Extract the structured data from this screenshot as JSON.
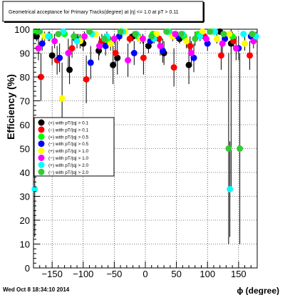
{
  "title_box": {
    "text": "Geometrical acceptance for Primary Tracks(degree) at |η| <= 1.0 at pT > 0.11"
  },
  "footer": {
    "timestamp": "Wed Oct  8 18:34:10 2014"
  },
  "chart_data": {
    "type": "scatter",
    "title": "Geometrical acceptance for Primary Tracks(degree) at |η| <= 1.0 at pT > 0.11",
    "xlabel": "ϕ (degree)",
    "ylabel": "Efficiency (%)",
    "xlim": [
      -180,
      180
    ],
    "ylim": [
      0,
      100
    ],
    "x_ticks": [
      -150,
      -100,
      -50,
      0,
      50,
      100,
      150
    ],
    "x_tick_labels": [
      "−150",
      "−100",
      "−50",
      "0",
      "50",
      "100",
      "150"
    ],
    "y_ticks": [
      0,
      10,
      20,
      30,
      40,
      50,
      60,
      70,
      80,
      90,
      100
    ],
    "y_tick_labels": [
      "0",
      "10",
      "20",
      "30",
      "40",
      "50",
      "60",
      "70",
      "80",
      "90",
      "100"
    ],
    "grid": true,
    "legend_position": "middle-left",
    "series": [
      {
        "name": "(+) with pT/|q| > 0.1",
        "color": "#000000",
        "marker": "circle",
        "x": [
          -175,
          -150,
          -122,
          -100,
          -75,
          -52,
          -45,
          -20,
          5,
          30,
          55,
          70,
          120,
          138,
          172
        ],
        "y": [
          97,
          89,
          83,
          94,
          91,
          85,
          88,
          97,
          93,
          90,
          96,
          85,
          99,
          94,
          98
        ],
        "yerr": [
          2,
          4,
          6,
          3,
          4,
          8,
          7,
          2,
          3,
          5,
          2,
          8,
          1,
          60,
          1
        ]
      },
      {
        "name": "(−) with pT/|q| > 0.1",
        "color": "#ff0000",
        "marker": "circle",
        "x": [
          -168,
          -142,
          -118,
          -95,
          -70,
          -48,
          -25,
          -3,
          22,
          46,
          72,
          95,
          122,
          142,
          168
        ],
        "y": [
          80,
          87,
          92,
          79,
          95,
          90,
          96,
          88,
          96,
          84,
          93,
          97,
          89,
          95,
          89
        ],
        "yerr": [
          10,
          6,
          4,
          10,
          3,
          5,
          2,
          7,
          2,
          8,
          4,
          2,
          6,
          3,
          6
        ]
      },
      {
        "name": "(+) with pT/|q| > 0.5",
        "color": "#00ff00",
        "marker": "circle",
        "x": [
          -176,
          -154,
          -130,
          -108,
          -85,
          -60,
          -38,
          -12,
          12,
          38,
          62,
          85,
          110,
          140,
          176
        ],
        "y": [
          99,
          97,
          98,
          96,
          98,
          95,
          99,
          97,
          98,
          99,
          97,
          98,
          99,
          97,
          96
        ],
        "yerr": [
          1,
          2,
          1,
          2,
          1,
          3,
          1,
          2,
          1,
          1,
          2,
          1,
          1,
          2,
          2
        ]
      },
      {
        "name": "(−) with pT/|q| > 0.5",
        "color": "#0000ff",
        "marker": "circle",
        "x": [
          -166,
          -138,
          -112,
          -88,
          -64,
          -42,
          -18,
          8,
          28,
          52,
          78,
          100,
          128,
          150,
          170
        ],
        "y": [
          94,
          88,
          96,
          86,
          93,
          97,
          90,
          95,
          91,
          97,
          88,
          94,
          96,
          92,
          97
        ],
        "yerr": [
          3,
          6,
          2,
          7,
          4,
          2,
          5,
          3,
          5,
          2,
          6,
          3,
          2,
          5,
          2
        ]
      },
      {
        "name": "(+) with pT/|q| > 1.0",
        "color": "#ffff00",
        "marker": "circle",
        "x": [
          -162,
          -134,
          -105,
          -80,
          -56,
          -32,
          -8,
          18,
          44,
          66,
          92,
          115,
          135,
          160
        ],
        "y": [
          97,
          71,
          95,
          98,
          94,
          99,
          96,
          98,
          97,
          95,
          99,
          96,
          98,
          94
        ],
        "yerr": [
          2,
          15,
          3,
          1,
          3,
          1,
          2,
          1,
          2,
          3,
          1,
          2,
          1,
          3
        ]
      },
      {
        "name": "(−) with pT/|q| > 1.0",
        "color": "#ff00ff",
        "marker": "circle",
        "x": [
          -172,
          -146,
          -124,
          -98,
          -74,
          -50,
          -28,
          -4,
          24,
          48,
          74,
          98,
          124,
          146,
          174
        ],
        "y": [
          92,
          95,
          90,
          97,
          93,
          96,
          87,
          96,
          93,
          98,
          90,
          96,
          94,
          92,
          95
        ],
        "yerr": [
          5,
          3,
          6,
          2,
          4,
          2,
          7,
          2,
          4,
          1,
          5,
          2,
          4,
          5,
          3
        ]
      },
      {
        "name": "(+) with pT/|q| > 2.0",
        "color": "#00ffff",
        "marker": "circle",
        "x": [
          -178,
          -156,
          -132,
          -110,
          -86,
          -62,
          -36,
          -14,
          14,
          36,
          60,
          88,
          112,
          136,
          158,
          178
        ],
        "y": [
          33,
          97,
          99,
          95,
          98,
          97,
          99,
          98,
          96,
          99,
          98,
          97,
          99,
          33,
          98,
          97
        ],
        "yerr": [
          20,
          2,
          1,
          3,
          1,
          2,
          1,
          1,
          2,
          1,
          1,
          2,
          1,
          20,
          1,
          2
        ]
      },
      {
        "name": "(−) with pT/|q| > 2.0",
        "color": "#33cc33",
        "marker": "circle",
        "x": [
          -170,
          -140,
          -115,
          -90,
          -66,
          -40,
          -16,
          10,
          34,
          58,
          80,
          104,
          126,
          134,
          152,
          172
        ],
        "y": [
          99,
          98,
          97,
          99,
          96,
          99,
          98,
          97,
          99,
          98,
          96,
          99,
          98,
          50,
          50,
          98
        ],
        "yerr": [
          1,
          1,
          2,
          1,
          2,
          1,
          1,
          2,
          1,
          1,
          3,
          1,
          1,
          40,
          40,
          1
        ]
      }
    ]
  }
}
